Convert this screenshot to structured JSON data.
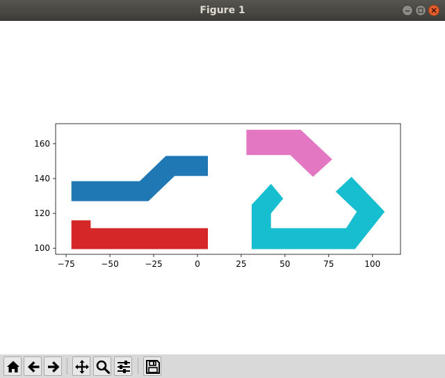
{
  "window": {
    "title": "Figure 1"
  },
  "toolbar": {
    "buttons": [
      {
        "name": "home-button",
        "icon": "home-icon"
      },
      {
        "name": "back-button",
        "icon": "arrow-left-icon"
      },
      {
        "name": "forward-button",
        "icon": "arrow-right-icon"
      },
      {
        "name": "pan-button",
        "icon": "move-icon"
      },
      {
        "name": "zoom-button",
        "icon": "magnifier-icon"
      },
      {
        "name": "configure-subplots-button",
        "icon": "sliders-icon"
      },
      {
        "name": "save-button",
        "icon": "floppy-disk-icon"
      }
    ],
    "coords": ""
  },
  "chart_data": {
    "type": "polygon",
    "title": "",
    "xlabel": "",
    "ylabel": "",
    "xlim": [
      -81,
      116
    ],
    "ylim": [
      96.5,
      171.5
    ],
    "xticks": [
      -75,
      -50,
      -25,
      0,
      25,
      50,
      75,
      100
    ],
    "xtick_labels": [
      "−75",
      "−50",
      "−25",
      "0",
      "25",
      "50",
      "75",
      "100"
    ],
    "yticks": [
      100,
      120,
      140,
      160
    ],
    "ytick_labels": [
      "100",
      "120",
      "140",
      "160"
    ],
    "grid": false,
    "series": [
      {
        "color": "#1f77b4",
        "points": [
          [
            -72,
            127
          ],
          [
            -28,
            127
          ],
          [
            -13,
            141.5
          ],
          [
            6,
            141.5
          ],
          [
            6,
            153
          ],
          [
            -18,
            153
          ],
          [
            -33,
            138.5
          ],
          [
            -72,
            138.5
          ]
        ]
      },
      {
        "color": "#d62728",
        "points": [
          [
            -72,
            99.5
          ],
          [
            6,
            99.5
          ],
          [
            6,
            111.5
          ],
          [
            -61,
            111.5
          ],
          [
            -61,
            116
          ],
          [
            -72,
            116
          ]
        ]
      },
      {
        "color": "#e377c2",
        "points": [
          [
            28,
            153.5
          ],
          [
            53,
            153.5
          ],
          [
            66,
            141
          ],
          [
            77,
            151
          ],
          [
            59,
            168
          ],
          [
            28,
            168
          ]
        ]
      },
      {
        "color": "#17becf",
        "points": [
          [
            31,
            99.5
          ],
          [
            90,
            99.5
          ],
          [
            107,
            121
          ],
          [
            88,
            141
          ],
          [
            79,
            132.5
          ],
          [
            91,
            121
          ],
          [
            85,
            111.5
          ],
          [
            42,
            111.5
          ],
          [
            42,
            120
          ],
          [
            49,
            128.5
          ],
          [
            42,
            137
          ],
          [
            31,
            125
          ]
        ]
      }
    ]
  }
}
